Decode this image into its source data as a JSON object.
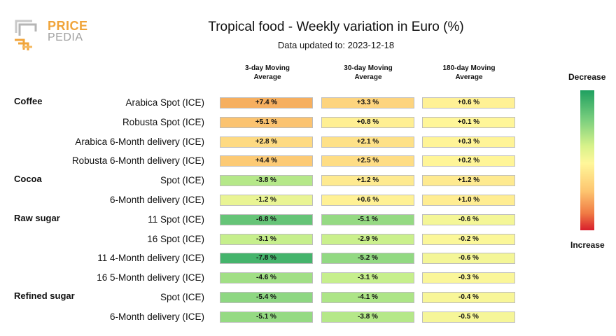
{
  "logo": {
    "line1": "PRICE",
    "line2": "PEDIA"
  },
  "title": "Tropical food - Weekly variation in Euro (%)",
  "subtitle": "Data updated to: 2023-12-18",
  "legend": {
    "top": "Decrease",
    "bottom": "Increase"
  },
  "chart_data": {
    "type": "table",
    "title": "Tropical food - Weekly variation in Euro (%)",
    "columns": [
      {
        "line1": "3-day Moving",
        "line2": "Average"
      },
      {
        "line1": "30-day Moving",
        "line2": "Average"
      },
      {
        "line1": "180-day Moving",
        "line2": "Average"
      }
    ],
    "groups": [
      {
        "name": "Coffee",
        "rows": [
          {
            "label": "Arabica Spot (ICE)",
            "values": [
              "+7.4 %",
              "+3.3 %",
              "+0.6 %"
            ]
          },
          {
            "label": "Robusta Spot (ICE)",
            "values": [
              "+5.1 %",
              "+0.8 %",
              "+0.1 %"
            ]
          },
          {
            "label": "Arabica 6-Month delivery (ICE)",
            "values": [
              "+2.8 %",
              "+2.1 %",
              "+0.3 %"
            ]
          },
          {
            "label": "Robusta 6-Month delivery (ICE)",
            "values": [
              "+4.4 %",
              "+2.5 %",
              "+0.2 %"
            ]
          }
        ]
      },
      {
        "name": "Cocoa",
        "rows": [
          {
            "label": "Spot (ICE)",
            "values": [
              "-3.8 %",
              "+1.2 %",
              "+1.2 %"
            ]
          },
          {
            "label": "6-Month delivery (ICE)",
            "values": [
              "-1.2 %",
              "+0.6 %",
              "+1.0 %"
            ]
          }
        ]
      },
      {
        "name": "Raw sugar",
        "rows": [
          {
            "label": "11 Spot (ICE)",
            "values": [
              "-6.8 %",
              "-5.1 %",
              "-0.6 %"
            ]
          },
          {
            "label": "16 Spot (ICE)",
            "values": [
              "-3.1 %",
              "-2.9 %",
              "-0.2 %"
            ]
          },
          {
            "label": "11 4-Month delivery (ICE)",
            "values": [
              "-7.8 %",
              "-5.2 %",
              "-0.6 %"
            ]
          },
          {
            "label": "16 5-Month delivery (ICE)",
            "values": [
              "-4.6 %",
              "-3.1 %",
              "-0.3 %"
            ]
          }
        ]
      },
      {
        "name": "Refined sugar",
        "rows": [
          {
            "label": "Spot (ICE)",
            "values": [
              "-5.4 %",
              "-4.1 %",
              "-0.4 %"
            ]
          },
          {
            "label": "6-Month delivery (ICE)",
            "values": [
              "-5.1 %",
              "-3.8 %",
              "-0.5 %"
            ]
          }
        ]
      }
    ],
    "color_scale": {
      "decrease": "#1fa060",
      "neutral": "#fff79a",
      "increase": "#d81e2c"
    }
  }
}
